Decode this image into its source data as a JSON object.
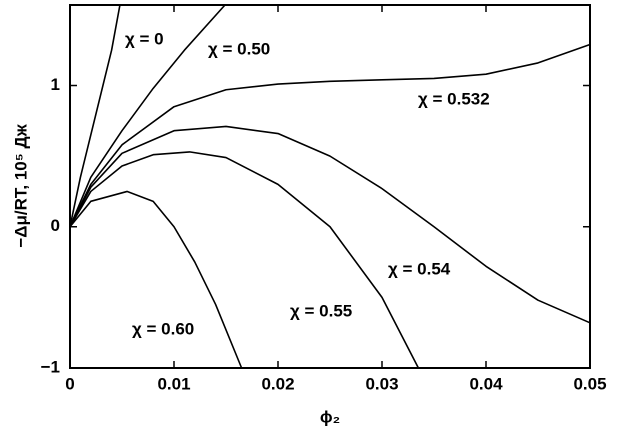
{
  "chart_data": {
    "type": "line",
    "xlabel": "ϕ₂",
    "ylabel": "−Δμ/RT, 10⁵ Дж",
    "xlim": [
      0,
      0.05
    ],
    "ylim": [
      -1,
      1.57
    ],
    "xticks": [
      0,
      0.01,
      0.02,
      0.03,
      0.04,
      0.05
    ],
    "yticks": [
      {
        "value": -1,
        "label": "−1"
      },
      0,
      1
    ],
    "series": [
      {
        "name": "χ = 0",
        "color": "#000000",
        "x": [
          0,
          0.001,
          0.002,
          0.003,
          0.004,
          0.0048
        ],
        "values": [
          0,
          0.35,
          0.65,
          0.95,
          1.25,
          1.57
        ]
      },
      {
        "name": "χ = 0.50",
        "color": "#000000",
        "x": [
          0,
          0.002,
          0.005,
          0.008,
          0.011,
          0.0149
        ],
        "values": [
          0,
          0.35,
          0.68,
          0.98,
          1.25,
          1.57
        ]
      },
      {
        "name": "χ = 0.532",
        "color": "#000000",
        "x": [
          0,
          0.002,
          0.005,
          0.01,
          0.015,
          0.02,
          0.025,
          0.03,
          0.035,
          0.04,
          0.045,
          0.05
        ],
        "values": [
          0,
          0.3,
          0.58,
          0.85,
          0.97,
          1.01,
          1.03,
          1.04,
          1.05,
          1.08,
          1.16,
          1.29
        ]
      },
      {
        "name": "χ = 0.54",
        "color": "#000000",
        "x": [
          0,
          0.002,
          0.005,
          0.01,
          0.015,
          0.02,
          0.025,
          0.03,
          0.035,
          0.04,
          0.045,
          0.05
        ],
        "values": [
          0,
          0.28,
          0.52,
          0.68,
          0.71,
          0.66,
          0.5,
          0.27,
          0,
          -0.28,
          -0.52,
          -0.68
        ]
      },
      {
        "name": "χ = 0.55",
        "color": "#000000",
        "x": [
          0,
          0.002,
          0.005,
          0.008,
          0.0115,
          0.015,
          0.02,
          0.025,
          0.03,
          0.0335
        ],
        "values": [
          0,
          0.25,
          0.43,
          0.51,
          0.53,
          0.49,
          0.3,
          0,
          -0.5,
          -1
        ]
      },
      {
        "name": "χ = 0.60",
        "color": "#000000",
        "x": [
          0,
          0.002,
          0.0055,
          0.008,
          0.01,
          0.012,
          0.014,
          0.0165
        ],
        "values": [
          0,
          0.18,
          0.25,
          0.18,
          0,
          -0.25,
          -0.55,
          -1
        ]
      }
    ]
  }
}
